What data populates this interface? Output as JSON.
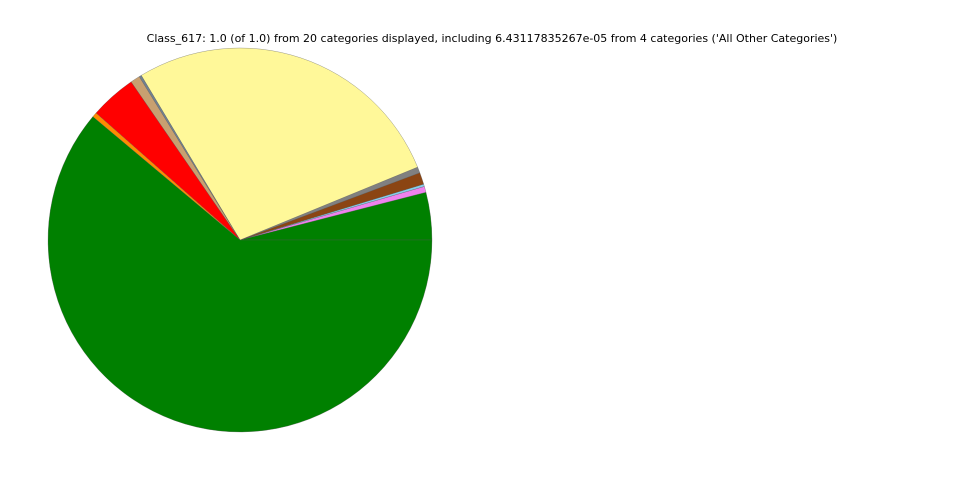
{
  "chart_data": {
    "type": "pie",
    "title": "Class_617: 1.0 (of 1.0) from 20 categories displayed, including 6.43117835267e-05 from 4 categories ('All Other Categories')",
    "series": [
      {
        "color": "#008000",
        "values": [
          0.04,
          0.005,
          0.002,
          0.01,
          0.005,
          0.274,
          0.002,
          0.008,
          0.039,
          0.004,
          0.611
        ]
      }
    ],
    "slice_colors": [
      "#008000",
      "#ee82ee",
      "#87ceeb",
      "#8b4513",
      "#808080",
      "#fff899",
      "#708090",
      "#c8a070",
      "#ff0000",
      "#ff8c00",
      "#008000"
    ]
  }
}
